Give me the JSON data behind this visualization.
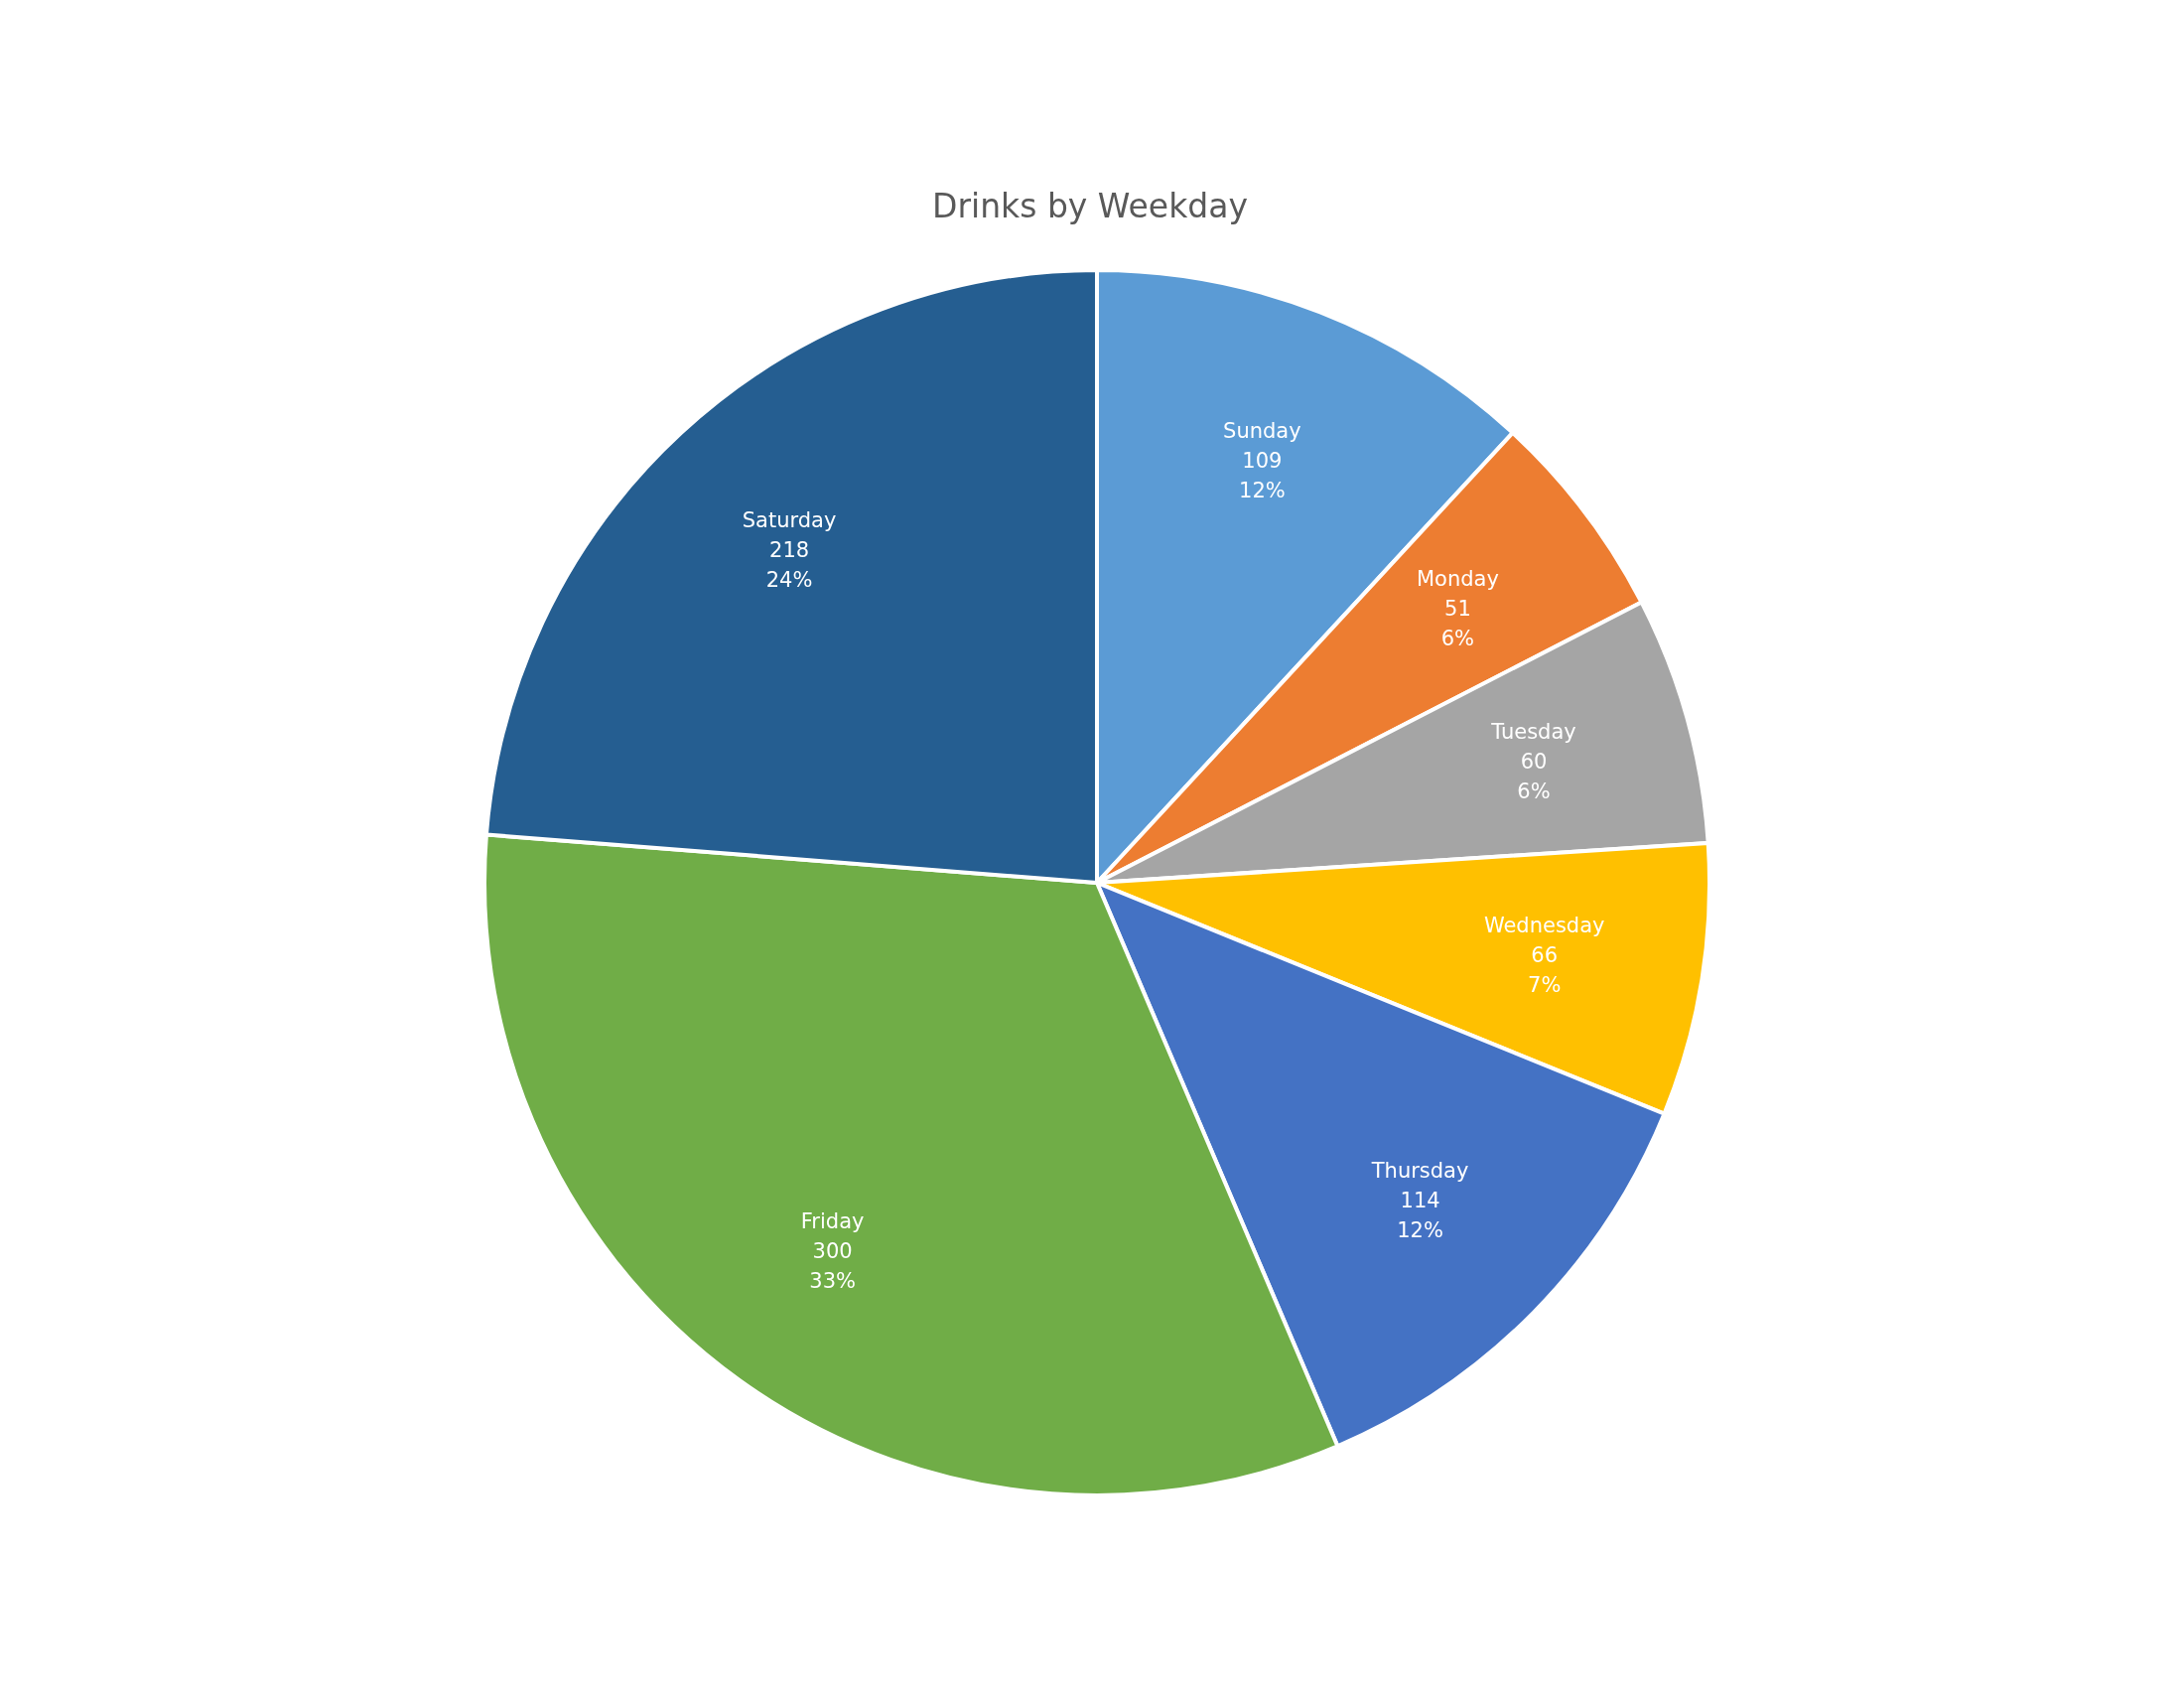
{
  "chart_data": {
    "type": "pie",
    "title": "Drinks by Weekday",
    "categories": [
      "Sunday",
      "Monday",
      "Tuesday",
      "Wednesday",
      "Thursday",
      "Friday",
      "Saturday"
    ],
    "values": [
      109,
      51,
      60,
      66,
      114,
      300,
      218
    ],
    "colors": [
      "#5b9bd5",
      "#ed7d31",
      "#a5a5a5",
      "#ffc000",
      "#4472c4",
      "#70ad47",
      "#255e91"
    ],
    "value_labels": [
      "109\n12%",
      "51\n6%",
      "60\n6%",
      "66\n7%",
      "114\n12%",
      "300\n33%",
      "218\n24%"
    ],
    "legend": false
  }
}
